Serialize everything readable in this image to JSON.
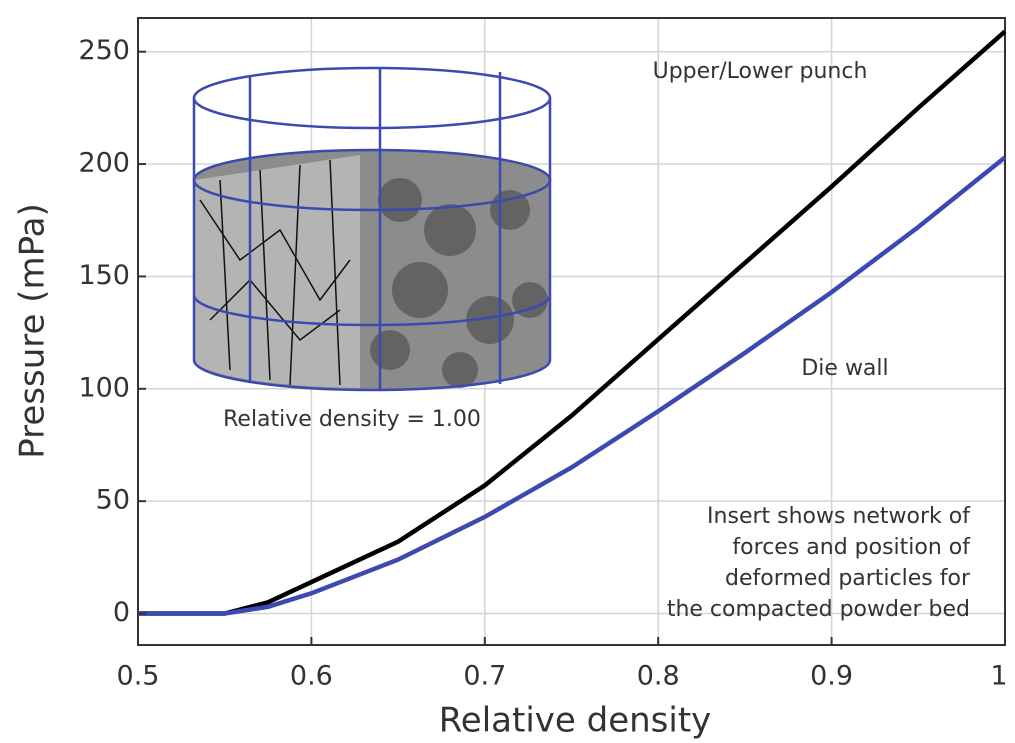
{
  "chart_data": {
    "type": "line",
    "x_label": "Relative density",
    "y_label": "Pressure (mPa)",
    "x": [
      0.5,
      0.55,
      0.575,
      0.6,
      0.65,
      0.7,
      0.75,
      0.8,
      0.85,
      0.9,
      0.95,
      1.0
    ],
    "series": [
      {
        "name": "Upper/Lower punch",
        "color": "#000000",
        "values": [
          0,
          0,
          5,
          14,
          32,
          57,
          88,
          122,
          156,
          190,
          225,
          259
        ]
      },
      {
        "name": "Die wall",
        "color": "#3b49b0",
        "values": [
          0,
          0,
          3,
          9,
          24,
          43,
          65,
          90,
          116,
          143,
          172,
          203
        ]
      }
    ],
    "xlim": [
      0.5,
      1.0
    ],
    "xticks": [
      0.5,
      0.6,
      0.7,
      0.8,
      0.9,
      1
    ],
    "ylim": [
      -14,
      265
    ],
    "yticks": [
      0,
      50,
      100,
      150,
      200,
      250
    ],
    "grid": true,
    "insert_label": "Relative density = 1.00",
    "note": [
      "Insert shows network of",
      "forces and position of",
      "deformed particles for",
      "the compacted powder bed"
    ]
  }
}
